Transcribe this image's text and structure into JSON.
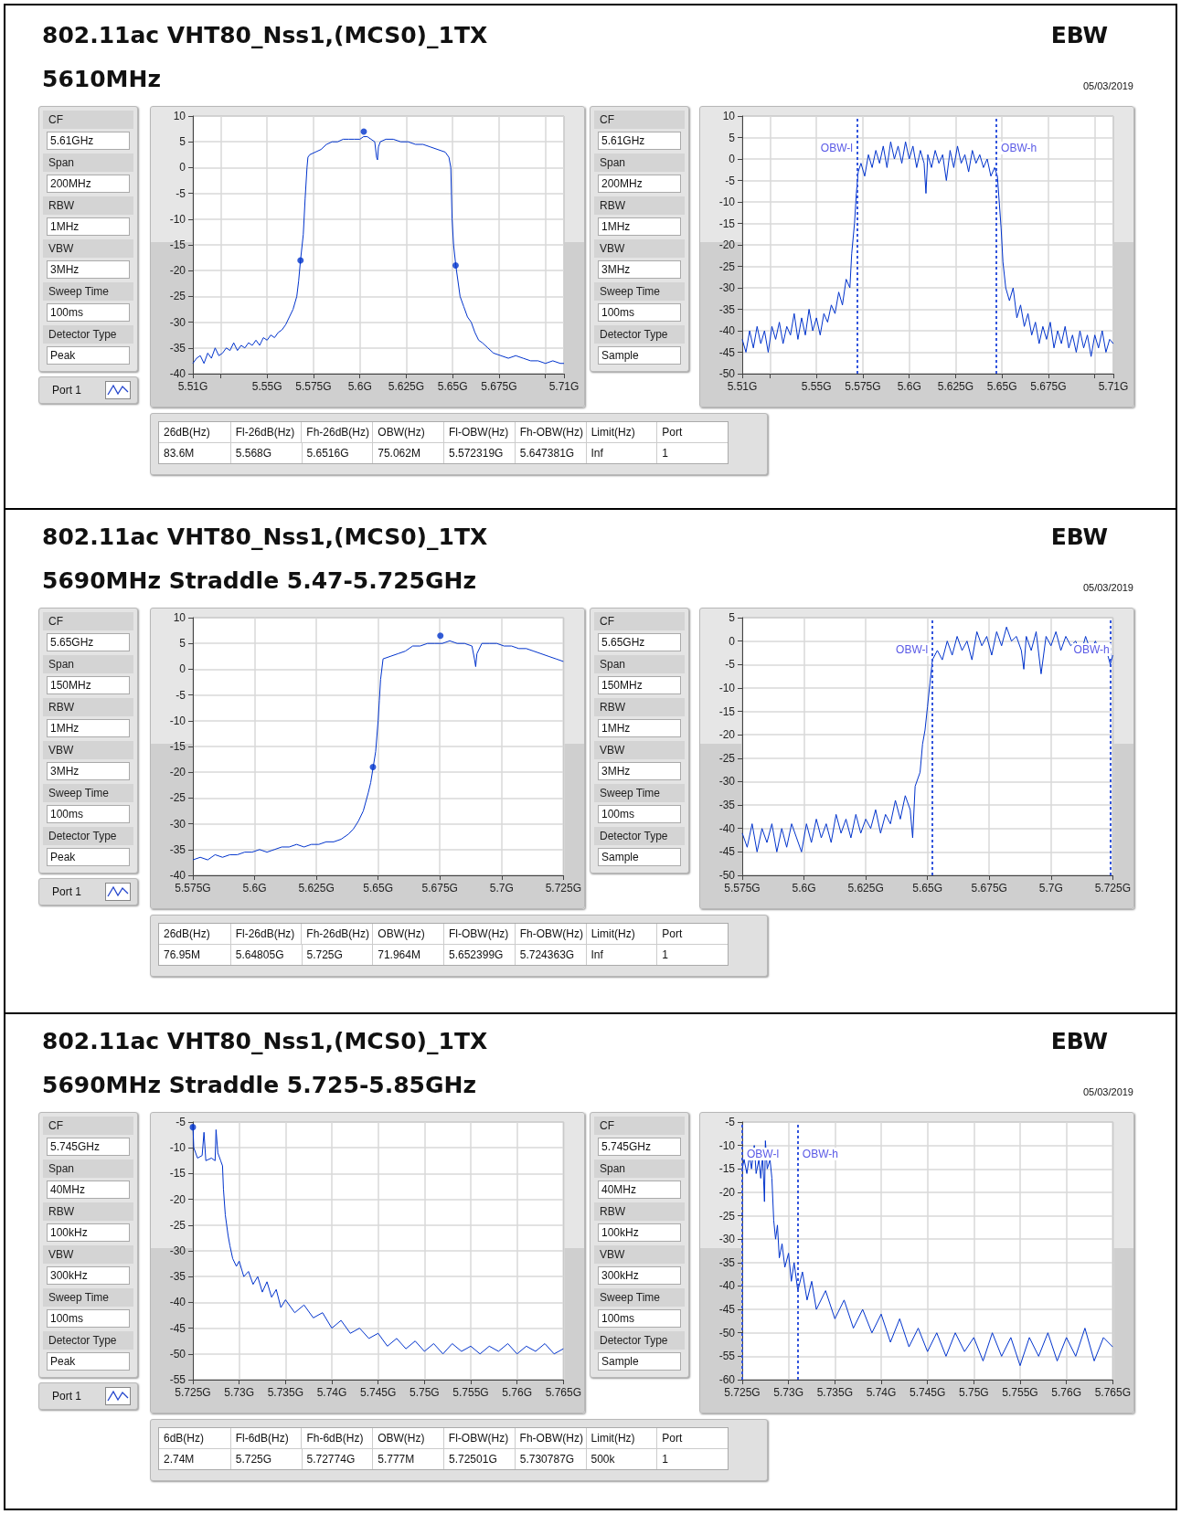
{
  "chart_data": [
    {
      "type": "other",
      "title": "802.11ac VHT80_Nss1,(MCS0)_1TX",
      "subtitle": "5610MHz",
      "annotations": [
        "EBW",
        "05/03/2019"
      ]
    },
    {
      "type": "other",
      "annotations": [
        "CF",
        "5.61GHz",
        "Span",
        "200MHz",
        "RBW",
        "1MHz",
        "VBW",
        "3MHz",
        "Sweep Time",
        "100ms",
        "Detector Type",
        "Peak"
      ]
    },
    {
      "type": "other",
      "annotations": [
        "Port 1"
      ]
    },
    {
      "type": "line",
      "grid": true,
      "marker": "none",
      "xlim": [
        5.51,
        5.71
      ],
      "xticks": [
        {
          "value": 5.51,
          "label": "5.51G"
        },
        {
          "value": 5.525,
          "label": null
        },
        {
          "value": 5.55,
          "label": "5.55G"
        },
        {
          "value": 5.575,
          "label": "5.575G"
        },
        {
          "value": 5.6,
          "label": "5.6G"
        },
        {
          "value": 5.625,
          "label": "5.625G"
        },
        {
          "value": 5.65,
          "label": "5.65G"
        },
        {
          "value": 5.675,
          "label": "5.675G"
        },
        {
          "value": 5.7,
          "label": null
        },
        {
          "value": 5.71,
          "label": "5.71G"
        }
      ],
      "ylim": [
        -40,
        10
      ],
      "yticks": [
        -40,
        -35,
        -30,
        -25,
        -20,
        -15,
        -10,
        -5,
        0,
        5,
        10
      ],
      "series": [
        {
          "type": "line",
          "color": "#0033cc",
          "x": [
            5.51,
            5.512,
            5.514,
            5.516,
            5.518,
            5.52,
            5.522,
            5.524,
            5.526,
            5.528,
            5.53,
            5.532,
            5.534,
            5.536,
            5.538,
            5.54,
            5.542,
            5.544,
            5.546,
            5.548,
            5.55,
            5.552,
            5.554,
            5.556,
            5.558,
            5.56,
            5.562,
            5.564,
            5.566,
            5.567,
            5.568,
            5.5695,
            5.5705,
            5.5715,
            5.572,
            5.573,
            5.576,
            5.579,
            5.582,
            5.585,
            5.588,
            5.591,
            5.594,
            5.597,
            5.6,
            5.602,
            5.604,
            5.606,
            5.608,
            5.609,
            5.6095,
            5.61,
            5.611,
            5.614,
            5.618,
            5.622,
            5.626,
            5.63,
            5.634,
            5.638,
            5.642,
            5.646,
            5.648,
            5.649,
            5.6497,
            5.6505,
            5.6517,
            5.654,
            5.656,
            5.658,
            5.66,
            5.662,
            5.664,
            5.666,
            5.669,
            5.672,
            5.676,
            5.68,
            5.684,
            5.688,
            5.692,
            5.696,
            5.7,
            5.704,
            5.708,
            5.71
          ],
          "values": [
            -38,
            -37,
            -36.5,
            -38,
            -36,
            -37,
            -35,
            -36.5,
            -36,
            -35,
            -35.5,
            -34,
            -35.5,
            -34.5,
            -35,
            -34,
            -34.5,
            -33.5,
            -34.5,
            -33,
            -33.5,
            -32.5,
            -33,
            -32,
            -31.5,
            -30.5,
            -29,
            -27.5,
            -25,
            -22,
            -18,
            -13,
            -6,
            0,
            2,
            2.5,
            3,
            3.5,
            4.5,
            5,
            5,
            5.5,
            5.5,
            5.5,
            5.5,
            6,
            6,
            5.5,
            5,
            2,
            1.5,
            4,
            5,
            5.5,
            5.5,
            5,
            5,
            4.5,
            4.5,
            4,
            3.5,
            3,
            2,
            0,
            -10,
            -15,
            -19,
            -25,
            -27,
            -29,
            -30,
            -32,
            -33.5,
            -34,
            -35,
            -36,
            -36.5,
            -37,
            -36.5,
            -37,
            -37.5,
            -37.5,
            -38,
            -37.5,
            -38,
            -38
          ]
        },
        {
          "type": "scatter",
          "marker": "circle",
          "color": "#0033cc",
          "x": [
            5.6021,
            5.568,
            5.6516
          ],
          "values": [
            7,
            -18,
            -19
          ]
        }
      ]
    },
    {
      "type": "other",
      "annotations": [
        "CF",
        "5.61GHz",
        "Span",
        "200MHz",
        "RBW",
        "1MHz",
        "VBW",
        "3MHz",
        "Sweep Time",
        "100ms",
        "Detector Type",
        "Sample"
      ]
    },
    {
      "type": "line",
      "grid": true,
      "marker": "none",
      "xlim": [
        5.51,
        5.71
      ],
      "xticks": [
        {
          "value": 5.51,
          "label": "5.51G"
        },
        {
          "value": 5.525,
          "label": null
        },
        {
          "value": 5.55,
          "label": "5.55G"
        },
        {
          "value": 5.575,
          "label": "5.575G"
        },
        {
          "value": 5.6,
          "label": "5.6G"
        },
        {
          "value": 5.625,
          "label": "5.625G"
        },
        {
          "value": 5.65,
          "label": "5.65G"
        },
        {
          "value": 5.675,
          "label": "5.675G"
        },
        {
          "value": 5.7,
          "label": null
        },
        {
          "value": 5.71,
          "label": "5.71G"
        }
      ],
      "ylim": [
        -50,
        10
      ],
      "yticks": [
        -50,
        -45,
        -40,
        -35,
        -30,
        -25,
        -20,
        -15,
        -10,
        -5,
        0,
        5,
        10
      ],
      "ref_lines": [
        {
          "axis": "x",
          "value": 5.572,
          "label": "OBW-l",
          "color": "#3355dd",
          "line_style": "dotted"
        },
        {
          "axis": "x",
          "value": 5.647,
          "label": "OBW-h",
          "color": "#3355dd",
          "line_style": "dotted"
        }
      ],
      "series": [
        {
          "type": "line",
          "color": "#0033cc",
          "x": [
            5.51,
            5.512,
            5.514,
            5.516,
            5.518,
            5.52,
            5.522,
            5.524,
            5.526,
            5.528,
            5.53,
            5.532,
            5.534,
            5.536,
            5.538,
            5.54,
            5.542,
            5.544,
            5.546,
            5.548,
            5.55,
            5.552,
            5.554,
            5.556,
            5.558,
            5.56,
            5.562,
            5.564,
            5.566,
            5.568,
            5.569,
            5.5705,
            5.5715,
            5.5725,
            5.574,
            5.576,
            5.578,
            5.58,
            5.582,
            5.584,
            5.586,
            5.588,
            5.59,
            5.592,
            5.594,
            5.596,
            5.598,
            5.6,
            5.602,
            5.604,
            5.606,
            5.608,
            5.609,
            5.61,
            5.612,
            5.614,
            5.616,
            5.618,
            5.62,
            5.622,
            5.624,
            5.626,
            5.628,
            5.63,
            5.632,
            5.634,
            5.636,
            5.638,
            5.64,
            5.642,
            5.644,
            5.646,
            5.6475,
            5.6485,
            5.6495,
            5.6505,
            5.652,
            5.654,
            5.656,
            5.658,
            5.66,
            5.662,
            5.664,
            5.666,
            5.668,
            5.67,
            5.672,
            5.674,
            5.676,
            5.678,
            5.68,
            5.682,
            5.684,
            5.686,
            5.688,
            5.69,
            5.692,
            5.694,
            5.696,
            5.698,
            5.7,
            5.702,
            5.704,
            5.706,
            5.708,
            5.71
          ],
          "values": [
            -42,
            -45,
            -40,
            -44,
            -39,
            -43,
            -40,
            -45,
            -39,
            -42,
            -38,
            -43,
            -39,
            -41,
            -36,
            -42,
            -37,
            -41,
            -35,
            -40,
            -37,
            -41,
            -36,
            -38,
            -34,
            -36,
            -31,
            -34,
            -28,
            -30,
            -22,
            -15,
            -8,
            -3,
            -1,
            -4,
            1,
            -2,
            2,
            -1,
            3,
            -2,
            4,
            0,
            3,
            -1,
            4,
            0,
            3,
            -2,
            2,
            -1,
            -8,
            1,
            -2,
            2,
            -1,
            1,
            -5,
            2,
            -2,
            3,
            -1,
            1,
            -3,
            2,
            -1,
            1,
            -2,
            0,
            -4,
            -2,
            -4,
            -10,
            -16,
            -24,
            -30,
            -33,
            -30,
            -37,
            -34,
            -39,
            -36,
            -41,
            -38,
            -43,
            -39,
            -42,
            -38,
            -44,
            -40,
            -43,
            -39,
            -44,
            -41,
            -45,
            -40,
            -44,
            -41,
            -46,
            -41,
            -44,
            -40,
            -45,
            -42,
            -43
          ]
        }
      ]
    },
    {
      "type": "other",
      "annotations": [
        "26dB(Hz)",
        "Fl-26dB(Hz)",
        "Fh-26dB(Hz)",
        "OBW(Hz)",
        "Fl-OBW(Hz)",
        "Fh-OBW(Hz)",
        "Limit(Hz)",
        "Port",
        "83.6M",
        "5.568G",
        "5.6516G",
        "75.062M",
        "5.572319G",
        "5.647381G",
        "Inf",
        "1"
      ]
    },
    {
      "type": "other",
      "title": "802.11ac VHT80_Nss1,(MCS0)_1TX",
      "subtitle": "5690MHz Straddle 5.47-5.725GHz",
      "annotations": [
        "EBW",
        "05/03/2019"
      ]
    },
    {
      "type": "other",
      "annotations": [
        "CF",
        "5.65GHz",
        "Span",
        "150MHz",
        "RBW",
        "1MHz",
        "VBW",
        "3MHz",
        "Sweep Time",
        "100ms",
        "Detector Type",
        "Peak"
      ]
    },
    {
      "type": "other",
      "annotations": [
        "Port 1"
      ]
    },
    {
      "type": "line",
      "grid": true,
      "marker": "none",
      "xlim": [
        5.575,
        5.725
      ],
      "xticks": [
        {
          "value": 5.575,
          "label": "5.575G"
        },
        {
          "value": 5.6,
          "label": "5.6G"
        },
        {
          "value": 5.625,
          "label": "5.625G"
        },
        {
          "value": 5.65,
          "label": "5.65G"
        },
        {
          "value": 5.675,
          "label": "5.675G"
        },
        {
          "value": 5.7,
          "label": "5.7G"
        },
        {
          "value": 5.725,
          "label": "5.725G"
        }
      ],
      "ylim": [
        -40,
        10
      ],
      "yticks": [
        -40,
        -35,
        -30,
        -25,
        -20,
        -15,
        -10,
        -5,
        0,
        5,
        10
      ],
      "series": [
        {
          "type": "line",
          "color": "#0033cc",
          "x": [
            5.575,
            5.578,
            5.581,
            5.584,
            5.587,
            5.59,
            5.593,
            5.596,
            5.599,
            5.602,
            5.605,
            5.608,
            5.611,
            5.614,
            5.617,
            5.62,
            5.623,
            5.626,
            5.629,
            5.632,
            5.635,
            5.638,
            5.64,
            5.642,
            5.644,
            5.646,
            5.647,
            5.648,
            5.649,
            5.65,
            5.6505,
            5.651,
            5.652,
            5.655,
            5.658,
            5.661,
            5.664,
            5.667,
            5.67,
            5.673,
            5.676,
            5.679,
            5.682,
            5.685,
            5.688,
            5.689,
            5.6895,
            5.69,
            5.692,
            5.695,
            5.698,
            5.701,
            5.704,
            5.707,
            5.71,
            5.713,
            5.716,
            5.719,
            5.722,
            5.725
          ],
          "values": [
            -37,
            -36.5,
            -37,
            -36,
            -36.5,
            -36,
            -36,
            -35.5,
            -35.5,
            -35,
            -35.5,
            -35,
            -34.5,
            -34.5,
            -34,
            -34.5,
            -34,
            -34,
            -33.5,
            -33.5,
            -33,
            -32,
            -31,
            -29.5,
            -27.5,
            -24,
            -22,
            -19,
            -16,
            -10,
            -6,
            -2,
            2,
            2.5,
            3,
            3.5,
            4.5,
            4.5,
            5,
            5,
            5,
            5.5,
            5,
            5,
            4.5,
            2,
            0.5,
            3,
            5,
            5,
            5,
            4.5,
            4.5,
            4,
            4,
            3.5,
            3,
            2.5,
            2,
            1.5
          ]
        },
        {
          "type": "scatter",
          "marker": "circle",
          "color": "#0033cc",
          "x": [
            5.6752,
            5.6479
          ],
          "values": [
            6.5,
            -19
          ]
        }
      ]
    },
    {
      "type": "other",
      "annotations": [
        "CF",
        "5.65GHz",
        "Span",
        "150MHz",
        "RBW",
        "1MHz",
        "VBW",
        "3MHz",
        "Sweep Time",
        "100ms",
        "Detector Type",
        "Sample"
      ]
    },
    {
      "type": "line",
      "grid": true,
      "marker": "none",
      "xlim": [
        5.575,
        5.725
      ],
      "xticks": [
        {
          "value": 5.575,
          "label": "5.575G"
        },
        {
          "value": 5.6,
          "label": "5.6G"
        },
        {
          "value": 5.625,
          "label": "5.625G"
        },
        {
          "value": 5.65,
          "label": "5.65G"
        },
        {
          "value": 5.675,
          "label": "5.675G"
        },
        {
          "value": 5.7,
          "label": "5.7G"
        },
        {
          "value": 5.725,
          "label": "5.725G"
        }
      ],
      "ylim": [
        -50,
        5
      ],
      "yticks": [
        -50,
        -45,
        -40,
        -35,
        -30,
        -25,
        -20,
        -15,
        -10,
        -5,
        0,
        5
      ],
      "ref_lines": [
        {
          "axis": "x",
          "value": 5.652,
          "label": "OBW-l",
          "color": "#3355dd",
          "line_style": "dotted"
        },
        {
          "axis": "x",
          "value": 5.724,
          "label": "OBW-h",
          "color": "#3355dd",
          "line_style": "dotted"
        }
      ],
      "series": [
        {
          "type": "line",
          "color": "#0033cc",
          "x": [
            5.575,
            5.577,
            5.579,
            5.581,
            5.583,
            5.585,
            5.587,
            5.589,
            5.591,
            5.593,
            5.595,
            5.597,
            5.599,
            5.601,
            5.603,
            5.605,
            5.607,
            5.609,
            5.611,
            5.613,
            5.615,
            5.617,
            5.619,
            5.621,
            5.623,
            5.625,
            5.627,
            5.629,
            5.631,
            5.633,
            5.635,
            5.637,
            5.639,
            5.641,
            5.643,
            5.644,
            5.645,
            5.647,
            5.648,
            5.649,
            5.65,
            5.651,
            5.652,
            5.654,
            5.656,
            5.658,
            5.66,
            5.662,
            5.664,
            5.666,
            5.668,
            5.67,
            5.672,
            5.674,
            5.676,
            5.678,
            5.68,
            5.682,
            5.684,
            5.686,
            5.688,
            5.689,
            5.69,
            5.692,
            5.694,
            5.696,
            5.698,
            5.7,
            5.702,
            5.704,
            5.706,
            5.708,
            5.71,
            5.712,
            5.714,
            5.716,
            5.718,
            5.72,
            5.722,
            5.724,
            5.725
          ],
          "values": [
            -41,
            -44,
            -39,
            -45,
            -40,
            -43,
            -39,
            -45,
            -40,
            -44,
            -39,
            -42,
            -45,
            -39,
            -43,
            -38,
            -42,
            -39,
            -43,
            -37,
            -41,
            -38,
            -42,
            -37,
            -41,
            -38,
            -40,
            -36,
            -41,
            -37,
            -39,
            -34,
            -38,
            -33,
            -36,
            -42,
            -31,
            -28,
            -22,
            -19,
            -14,
            -9,
            -4,
            -2,
            -4,
            0,
            -3,
            1,
            -2,
            0,
            -4,
            2,
            -1,
            1,
            -3,
            2,
            -1,
            3,
            0,
            1,
            -2,
            -6,
            1,
            -2,
            2,
            -7,
            1,
            -1,
            2,
            -2,
            1,
            -1,
            0,
            -3,
            1,
            -2,
            0,
            -3,
            -1,
            -5,
            -3
          ]
        }
      ]
    },
    {
      "type": "other",
      "annotations": [
        "26dB(Hz)",
        "Fl-26dB(Hz)",
        "Fh-26dB(Hz)",
        "OBW(Hz)",
        "Fl-OBW(Hz)",
        "Fh-OBW(Hz)",
        "Limit(Hz)",
        "Port",
        "76.95M",
        "5.64805G",
        "5.725G",
        "71.964M",
        "5.652399G",
        "5.724363G",
        "Inf",
        "1"
      ]
    },
    {
      "type": "other",
      "title": "802.11ac VHT80_Nss1,(MCS0)_1TX",
      "subtitle": "5690MHz Straddle 5.725-5.85GHz",
      "annotations": [
        "EBW",
        "05/03/2019"
      ]
    },
    {
      "type": "other",
      "annotations": [
        "CF",
        "5.745GHz",
        "Span",
        "40MHz",
        "RBW",
        "100kHz",
        "VBW",
        "300kHz",
        "Sweep Time",
        "100ms",
        "Detector Type",
        "Peak"
      ]
    },
    {
      "type": "other",
      "annotations": [
        "Port 1"
      ]
    },
    {
      "type": "line",
      "grid": true,
      "marker": "none",
      "xlim": [
        5.725,
        5.765
      ],
      "xticks": [
        {
          "value": 5.725,
          "label": "5.725G"
        },
        {
          "value": 5.73,
          "label": "5.73G"
        },
        {
          "value": 5.735,
          "label": "5.735G"
        },
        {
          "value": 5.74,
          "label": "5.74G"
        },
        {
          "value": 5.745,
          "label": "5.745G"
        },
        {
          "value": 5.75,
          "label": "5.75G"
        },
        {
          "value": 5.755,
          "label": "5.755G"
        },
        {
          "value": 5.76,
          "label": "5.76G"
        },
        {
          "value": 5.765,
          "label": "5.765G"
        }
      ],
      "ylim": [
        -55,
        -5
      ],
      "yticks": [
        -55,
        -50,
        -45,
        -40,
        -35,
        -30,
        -25,
        -20,
        -15,
        -10,
        -5
      ],
      "series": [
        {
          "type": "line",
          "color": "#0033cc",
          "x": [
            5.725,
            5.7251,
            5.7255,
            5.726,
            5.7262,
            5.7264,
            5.727,
            5.7274,
            5.7275,
            5.7277,
            5.728,
            5.7282,
            5.7283,
            5.7285,
            5.7288,
            5.729,
            5.7293,
            5.7297,
            5.73,
            5.7305,
            5.731,
            5.7315,
            5.732,
            5.7325,
            5.733,
            5.7335,
            5.734,
            5.7345,
            5.735,
            5.736,
            5.737,
            5.738,
            5.739,
            5.74,
            5.741,
            5.742,
            5.743,
            5.744,
            5.745,
            5.746,
            5.747,
            5.748,
            5.749,
            5.75,
            5.751,
            5.752,
            5.753,
            5.754,
            5.755,
            5.756,
            5.757,
            5.758,
            5.759,
            5.76,
            5.761,
            5.762,
            5.763,
            5.764,
            5.765
          ],
          "values": [
            -5.5,
            -10,
            -12,
            -11.5,
            -7,
            -12.5,
            -12,
            -12.5,
            -6.5,
            -11,
            -12.5,
            -13.5,
            -18,
            -23,
            -27,
            -29,
            -31.5,
            -33,
            -32,
            -35,
            -34,
            -36.5,
            -35,
            -38,
            -36,
            -39,
            -37.5,
            -41,
            -39.5,
            -42,
            -40.5,
            -43,
            -42,
            -45,
            -43.5,
            -46,
            -45,
            -47,
            -46,
            -48.5,
            -47,
            -49,
            -47.5,
            -49.5,
            -48,
            -50,
            -48,
            -49.5,
            -48.5,
            -50,
            -48.5,
            -49.5,
            -48,
            -50,
            -48.5,
            -49.5,
            -48,
            -50,
            -49
          ]
        },
        {
          "type": "scatter",
          "marker": "circle",
          "color": "#0033cc",
          "x": [
            5.725
          ],
          "values": [
            -6
          ]
        }
      ]
    },
    {
      "type": "other",
      "annotations": [
        "CF",
        "5.745GHz",
        "Span",
        "40MHz",
        "RBW",
        "100kHz",
        "VBW",
        "300kHz",
        "Sweep Time",
        "100ms",
        "Detector Type",
        "Sample"
      ]
    },
    {
      "type": "line",
      "grid": true,
      "marker": "none",
      "xlim": [
        5.725,
        5.765
      ],
      "xticks": [
        {
          "value": 5.725,
          "label": "5.725G"
        },
        {
          "value": 5.73,
          "label": "5.73G"
        },
        {
          "value": 5.735,
          "label": "5.735G"
        },
        {
          "value": 5.74,
          "label": "5.74G"
        },
        {
          "value": 5.745,
          "label": "5.745G"
        },
        {
          "value": 5.75,
          "label": "5.75G"
        },
        {
          "value": 5.755,
          "label": "5.755G"
        },
        {
          "value": 5.76,
          "label": "5.76G"
        },
        {
          "value": 5.765,
          "label": "5.765G"
        }
      ],
      "ylim": [
        -60,
        -5
      ],
      "yticks": [
        -60,
        -55,
        -50,
        -45,
        -40,
        -35,
        -30,
        -25,
        -20,
        -15,
        -10,
        -5
      ],
      "ref_lines": [
        {
          "axis": "x",
          "value": 5.725,
          "label": "OBW-l",
          "color": "#3355dd",
          "line_style": "dotted"
        },
        {
          "axis": "x",
          "value": 5.731,
          "label": "OBW-h",
          "color": "#3355dd",
          "line_style": "dotted"
        }
      ],
      "series": [
        {
          "type": "line",
          "color": "#0033cc",
          "x": [
            5.725,
            5.7252,
            5.7255,
            5.7258,
            5.726,
            5.7263,
            5.7265,
            5.7268,
            5.727,
            5.7272,
            5.7274,
            5.7275,
            5.7277,
            5.728,
            5.7282,
            5.7284,
            5.7286,
            5.7288,
            5.729,
            5.7293,
            5.7296,
            5.73,
            5.7303,
            5.7306,
            5.731,
            5.7315,
            5.732,
            5.7325,
            5.733,
            5.734,
            5.735,
            5.736,
            5.737,
            5.738,
            5.739,
            5.74,
            5.741,
            5.742,
            5.743,
            5.744,
            5.745,
            5.746,
            5.747,
            5.748,
            5.749,
            5.75,
            5.751,
            5.752,
            5.753,
            5.754,
            5.755,
            5.756,
            5.757,
            5.758,
            5.759,
            5.76,
            5.761,
            5.762,
            5.763,
            5.764,
            5.765
          ],
          "values": [
            -15,
            -13,
            -16,
            -12,
            -15,
            -10,
            -16,
            -13,
            -17,
            -12,
            -22,
            -9,
            -15,
            -13,
            -17,
            -26,
            -30,
            -27,
            -34,
            -31,
            -36,
            -33,
            -39,
            -35,
            -41,
            -37,
            -43,
            -39,
            -45,
            -41,
            -47,
            -43,
            -49,
            -45,
            -50,
            -46,
            -52,
            -47,
            -53,
            -49,
            -54,
            -50,
            -55,
            -50,
            -54,
            -51,
            -56,
            -50,
            -55,
            -51,
            -57,
            -51,
            -55,
            -50,
            -56,
            -51,
            -55,
            -49,
            -56,
            -51,
            -53
          ]
        }
      ]
    },
    {
      "type": "other",
      "annotations": [
        "6dB(Hz)",
        "Fl-6dB(Hz)",
        "Fh-6dB(Hz)",
        "OBW(Hz)",
        "Fl-OBW(Hz)",
        "Fh-OBW(Hz)",
        "Limit(Hz)",
        "Port",
        "2.74M",
        "5.725G",
        "5.72774G",
        "5.777M",
        "5.72501G",
        "5.730787G",
        "500k",
        "1"
      ]
    }
  ]
}
